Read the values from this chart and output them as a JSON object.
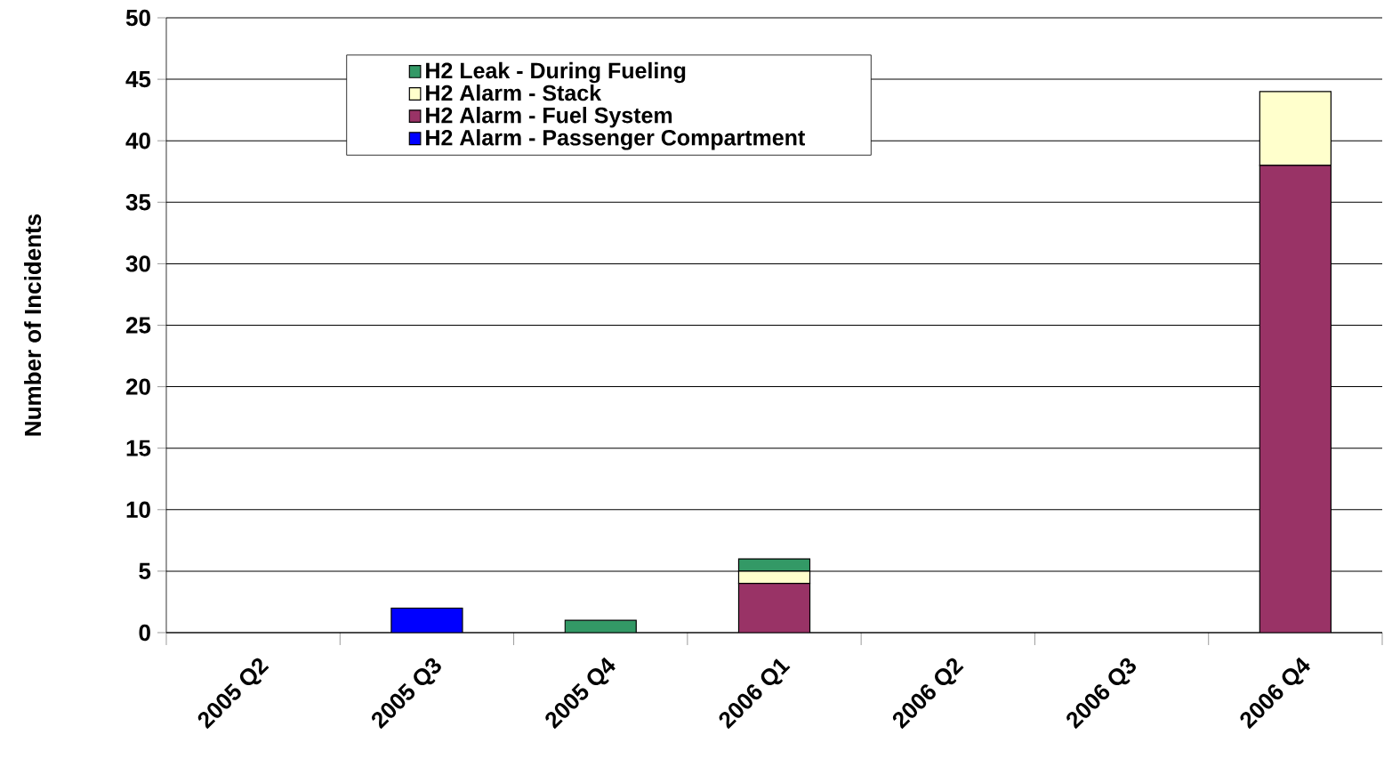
{
  "chart_data": {
    "type": "bar",
    "stacked": true,
    "ylabel": "Number of Incidents",
    "categories": [
      "2005 Q2",
      "2005 Q3",
      "2005 Q4",
      "2006 Q1",
      "2006 Q2",
      "2006 Q3",
      "2006 Q4"
    ],
    "series": [
      {
        "name": "H2 Alarm - Passenger Compartment",
        "color": "#0000ff",
        "values": [
          0,
          2,
          0,
          0,
          0,
          0,
          0
        ]
      },
      {
        "name": "H2 Alarm - Fuel System",
        "color": "#993366",
        "values": [
          0,
          0,
          0,
          4,
          0,
          0,
          38
        ]
      },
      {
        "name": "H2 Alarm - Stack",
        "color": "#ffffcc",
        "values": [
          0,
          0,
          0,
          1,
          0,
          0,
          6
        ]
      },
      {
        "name": "H2 Leak - During Fueling",
        "color": "#339966",
        "values": [
          0,
          0,
          1,
          1,
          0,
          0,
          0
        ]
      }
    ],
    "ylim": [
      0,
      50
    ],
    "yticks": [
      0,
      5,
      10,
      15,
      20,
      25,
      30,
      35,
      40,
      45,
      50
    ],
    "grid": "y",
    "legend": "top"
  }
}
